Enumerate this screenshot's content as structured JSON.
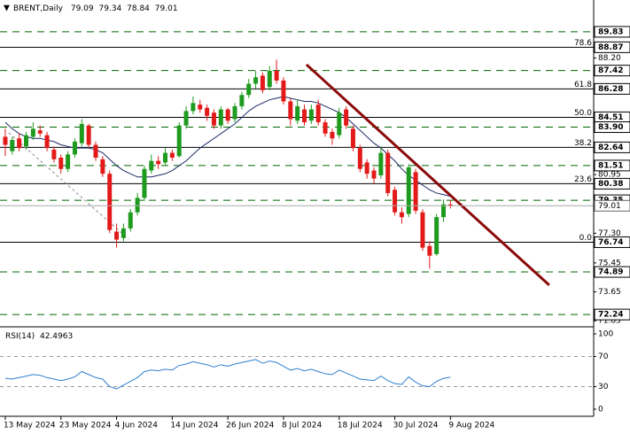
{
  "chart_data": {
    "type": "candlestick",
    "title": "BRENT,Daily",
    "categories": [
      "13 May 2024",
      null,
      null,
      null,
      null,
      null,
      null,
      null,
      "23 May 2024",
      null,
      null,
      null,
      null,
      null,
      null,
      null,
      "4 Jun 2024",
      null,
      null,
      null,
      null,
      null,
      null,
      null,
      "14 Jun 2024",
      null,
      null,
      null,
      null,
      null,
      null,
      null,
      "26 Jun 2024",
      null,
      null,
      null,
      null,
      null,
      null,
      null,
      "8 Jul 2024",
      null,
      null,
      null,
      null,
      null,
      null,
      null,
      "18 Jul 2024",
      null,
      null,
      null,
      null,
      null,
      null,
      null,
      "30 Jul 2024",
      null,
      null,
      null,
      null,
      null,
      null,
      null,
      "9 Aug 2024"
    ],
    "open": [
      83.3,
      82.4,
      83.2,
      82.7,
      83.3,
      83.7,
      83.4,
      82.5,
      82.0,
      81.3,
      82.2,
      82.9,
      84.0,
      82.8,
      81.9,
      81.0,
      77.4,
      77.0,
      77.6,
      78.6,
      79.5,
      81.2,
      81.8,
      81.7,
      82.3,
      82.1,
      84.0,
      84.9,
      85.3,
      85.1,
      84.8,
      84.0,
      85.0,
      84.4,
      85.2,
      85.9,
      86.6,
      87.1,
      86.4,
      87.4,
      86.8,
      85.5,
      84.3,
      85.0,
      84.3,
      85.3,
      84.2,
      83.6,
      83.4,
      85.0,
      83.8,
      82.6,
      81.7,
      81.2,
      80.9,
      82.3,
      80.0,
      78.6,
      78.5,
      81.1,
      78.6,
      76.5,
      76.0,
      78.3,
      79.09
    ],
    "high": [
      83.8,
      83.3,
      83.5,
      83.6,
      84.2,
      84.0,
      83.6,
      82.7,
      82.2,
      82.4,
      83.2,
      84.4,
      84.1,
      83.0,
      82.1,
      81.2,
      77.9,
      77.9,
      78.8,
      79.8,
      81.5,
      82.2,
      82.1,
      82.6,
      82.5,
      84.2,
      85.2,
      85.8,
      85.6,
      85.3,
      85.0,
      85.2,
      85.1,
      85.4,
      86.1,
      86.9,
      87.4,
      87.3,
      87.7,
      88.1,
      87.0,
      85.7,
      85.6,
      85.3,
      85.3,
      85.6,
      84.4,
      83.8,
      85.1,
      85.2,
      84.0,
      82.8,
      81.9,
      81.4,
      82.6,
      82.5,
      80.2,
      78.9,
      81.6,
      81.3,
      78.8,
      76.8,
      78.5,
      79.4,
      79.34
    ],
    "low": [
      82.1,
      82.2,
      82.4,
      82.5,
      83.1,
      83.3,
      82.4,
      81.7,
      81.0,
      81.1,
      82.0,
      82.7,
      82.6,
      81.8,
      80.8,
      77.3,
      76.4,
      76.8,
      77.4,
      78.4,
      79.3,
      81.0,
      81.3,
      81.5,
      81.8,
      82.0,
      83.8,
      84.7,
      84.8,
      84.3,
      83.8,
      83.8,
      84.1,
      84.2,
      85.0,
      85.7,
      86.3,
      86.0,
      86.2,
      86.6,
      85.3,
      84.0,
      84.1,
      84.0,
      84.1,
      84.0,
      83.3,
      82.8,
      83.2,
      83.8,
      82.4,
      81.1,
      80.7,
      80.4,
      80.7,
      79.6,
      78.4,
      77.9,
      78.3,
      78.5,
      76.2,
      75.1,
      75.9,
      78.0,
      78.84
    ],
    "close": [
      82.8,
      83.1,
      82.6,
      83.4,
      83.8,
      83.5,
      82.6,
      81.9,
      81.3,
      82.2,
      83.0,
      84.1,
      82.8,
      82.0,
      81.0,
      77.5,
      76.9,
      77.6,
      78.6,
      79.5,
      81.3,
      81.8,
      81.6,
      82.3,
      82.0,
      84.0,
      84.9,
      85.4,
      85.0,
      84.6,
      84.0,
      85.0,
      84.3,
      85.2,
      85.9,
      86.6,
      87.0,
      86.2,
      87.4,
      86.8,
      85.5,
      84.4,
      85.2,
      84.2,
      85.0,
      84.2,
      83.5,
      83.2,
      84.8,
      84.0,
      82.6,
      81.3,
      81.0,
      80.7,
      82.3,
      79.8,
      78.6,
      78.3,
      81.4,
      78.7,
      76.4,
      75.9,
      78.3,
      79.1,
      79.01
    ],
    "up_color": "#1e9b1e",
    "down_color": "#e31a1a",
    "ma": {
      "color": "#1c2a66",
      "values": [
        84.2,
        83.8,
        83.5,
        83.3,
        83.2,
        83.2,
        83.1,
        83.0,
        82.8,
        82.7,
        82.6,
        82.6,
        82.6,
        82.5,
        82.3,
        81.9,
        81.5,
        81.2,
        81.0,
        80.8,
        80.8,
        80.8,
        80.9,
        81.0,
        81.2,
        81.5,
        81.8,
        82.2,
        82.6,
        82.9,
        83.2,
        83.5,
        83.8,
        84.1,
        84.5,
        84.9,
        85.2,
        85.4,
        85.6,
        85.7,
        85.8,
        85.7,
        85.6,
        85.5,
        85.5,
        85.4,
        85.2,
        85.0,
        84.8,
        84.5,
        84.1,
        83.7,
        83.3,
        82.9,
        82.6,
        82.2,
        81.8,
        81.3,
        80.9,
        80.6,
        80.3,
        80.0,
        79.8,
        79.7,
        79.6
      ]
    },
    "trendline": {
      "color": "#8b0a0a",
      "x": [
        43.3,
        78.2
      ],
      "y": [
        87.79,
        74.07
      ]
    },
    "fib_anchor": {
      "x": [
        0.5,
        17.7
      ],
      "y": [
        83.55,
        76.94
      ]
    },
    "xlim": [
      -0.76,
      84.59
    ],
    "ylim": [
      71.53,
      91.81
    ],
    "yticks": [
      {
        "value": 88.2,
        "label": "88.20"
      },
      80.95,
      {
        "value": 77.3,
        "label": "77.30"
      },
      75.45,
      73.65,
      71.85
    ],
    "level_color": "#006400",
    "levels": [
      {
        "value": 89.83,
        "style": "dashed"
      },
      {
        "value": 88.87,
        "style": "solid",
        "fib": "78.6"
      },
      {
        "value": 87.42,
        "style": "dashed"
      },
      {
        "value": 86.28,
        "style": "solid",
        "fib": "61.8"
      },
      {
        "value": 84.51,
        "style": "solid",
        "fib": "50.0"
      },
      {
        "value": 83.9,
        "label": "83.90",
        "style": "dashed"
      },
      {
        "value": 82.64,
        "style": "solid",
        "fib": "38.2"
      },
      {
        "value": 81.51,
        "style": "dashed"
      },
      {
        "value": 80.38,
        "style": "solid",
        "fib": "23.6"
      },
      {
        "value": 79.35,
        "style": "dashed"
      },
      {
        "value": 76.74,
        "style": "solid",
        "fib": "0.0"
      },
      {
        "value": 74.89,
        "style": "dashed"
      },
      {
        "value": 72.24,
        "style": "dashed"
      }
    ],
    "rsi": {
      "name": "RSI(14)",
      "color": "#2f7fd0",
      "values": [
        41,
        40,
        42,
        44,
        46,
        45,
        42,
        40,
        38,
        40,
        43,
        50,
        46,
        42,
        40,
        30,
        27,
        32,
        37,
        42,
        50,
        52,
        51,
        53,
        52,
        58,
        60,
        63,
        61,
        59,
        56,
        59,
        57,
        60,
        62,
        64,
        66,
        61,
        64,
        62,
        57,
        52,
        54,
        51,
        53,
        50,
        47,
        46,
        52,
        48,
        44,
        40,
        39,
        38,
        44,
        38,
        34,
        33,
        43,
        36,
        31,
        30,
        37,
        41,
        42.4963
      ],
      "ylim": [
        -9.4,
        108.2
      ],
      "yticks": [
        0,
        30,
        70,
        100
      ],
      "levels": [
        30,
        70
      ]
    }
  }
}
